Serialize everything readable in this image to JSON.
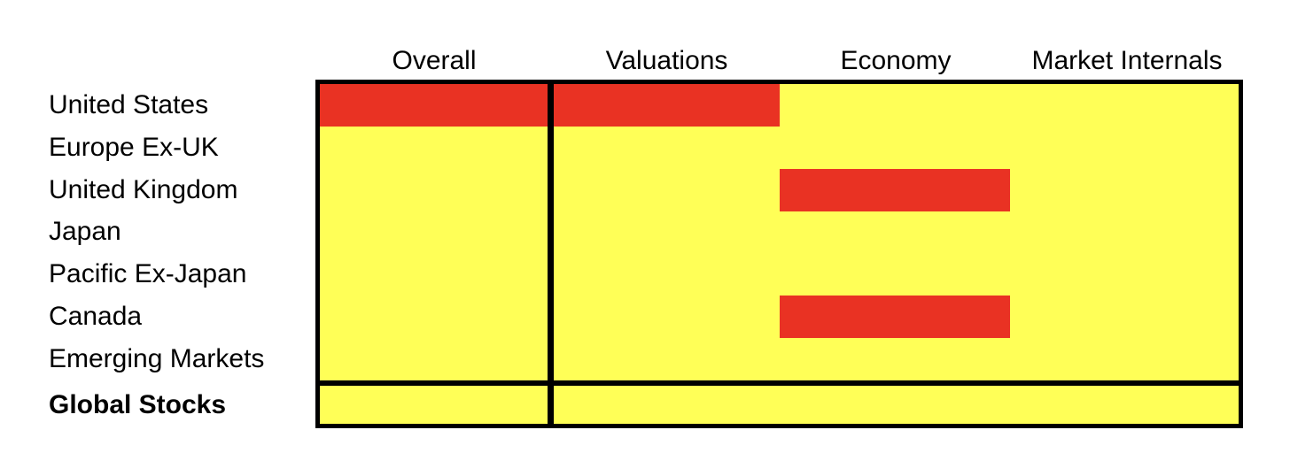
{
  "chart_data": {
    "type": "heatmap",
    "title": "",
    "columns": [
      "Overall",
      "Valuations",
      "Economy",
      "Market Internals"
    ],
    "rows": [
      {
        "label": "United States",
        "bold": false,
        "values": [
          "red",
          "red",
          "yellow",
          "yellow"
        ]
      },
      {
        "label": "Europe Ex-UK",
        "bold": false,
        "values": [
          "yellow",
          "yellow",
          "yellow",
          "yellow"
        ]
      },
      {
        "label": "United Kingdom",
        "bold": false,
        "values": [
          "yellow",
          "yellow",
          "red",
          "yellow"
        ]
      },
      {
        "label": "Japan",
        "bold": false,
        "values": [
          "yellow",
          "yellow",
          "yellow",
          "yellow"
        ]
      },
      {
        "label": "Pacific Ex-Japan",
        "bold": false,
        "values": [
          "yellow",
          "yellow",
          "yellow",
          "yellow"
        ]
      },
      {
        "label": "Canada",
        "bold": false,
        "values": [
          "yellow",
          "yellow",
          "red",
          "yellow"
        ]
      },
      {
        "label": "Emerging Markets",
        "bold": false,
        "values": [
          "yellow",
          "yellow",
          "yellow",
          "yellow"
        ]
      },
      {
        "label": "Global Stocks",
        "bold": true,
        "values": [
          "yellow",
          "yellow",
          "yellow",
          "yellow"
        ]
      }
    ],
    "colors": {
      "red": "#E93223",
      "yellow": "#FFFF57"
    },
    "layout_hints": {
      "grouped_first_column": "Overall",
      "separator_above_row": "Global Stocks",
      "grid": "off",
      "legend": "none"
    }
  }
}
